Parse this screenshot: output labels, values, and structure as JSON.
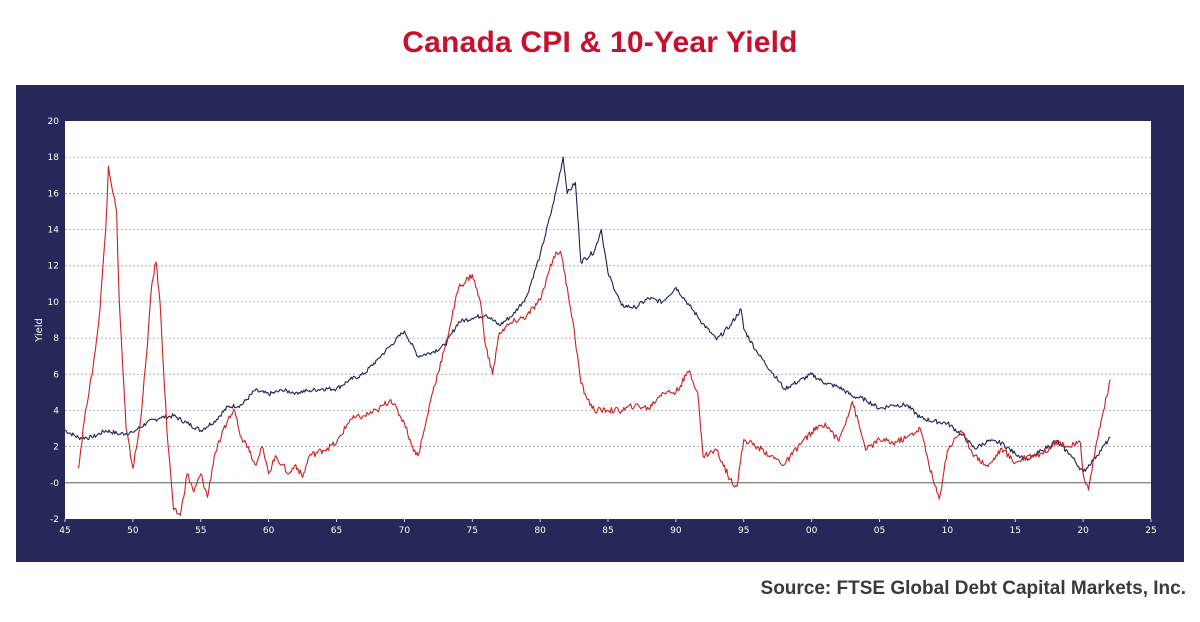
{
  "header": {
    "title": "Canada CPI & 10-Year Yield"
  },
  "footer": {
    "source": "Source: FTSE Global Debt Capital Markets, Inc."
  },
  "colors": {
    "background": "#252859",
    "plot_bg": "#ffffff",
    "cpi": "#cc1f1f",
    "yield": "#1e2258",
    "title": "#c8102e"
  },
  "chart_data": {
    "type": "line",
    "title": "Canada CPI & 10-Year Yield",
    "xlabel": "",
    "ylabel": "Yield",
    "xlim": [
      1945,
      2025
    ],
    "ylim": [
      -2,
      20
    ],
    "grid": true,
    "x_ticks": [
      "45",
      "50",
      "55",
      "60",
      "65",
      "70",
      "75",
      "80",
      "85",
      "90",
      "95",
      "00",
      "05",
      "10",
      "15",
      "20",
      "25"
    ],
    "y_ticks": [
      "-2",
      "-0",
      "2",
      "4",
      "6",
      "8",
      "10",
      "12",
      "14",
      "16",
      "18",
      "20"
    ],
    "series": [
      {
        "color": "#1e2258",
        "points": [
          [
            1945,
            2.9
          ],
          [
            1946,
            2.5
          ],
          [
            1947,
            2.5
          ],
          [
            1948,
            2.9
          ],
          [
            1949,
            2.7
          ],
          [
            1950,
            2.8
          ],
          [
            1951,
            3.3
          ],
          [
            1952,
            3.6
          ],
          [
            1953,
            3.7
          ],
          [
            1954,
            3.3
          ],
          [
            1955,
            2.9
          ],
          [
            1956,
            3.4
          ],
          [
            1957,
            4.2
          ],
          [
            1958,
            4.3
          ],
          [
            1959,
            5.1
          ],
          [
            1960,
            4.9
          ],
          [
            1961,
            5.1
          ],
          [
            1962,
            5.0
          ],
          [
            1963,
            5.1
          ],
          [
            1964,
            5.2
          ],
          [
            1965,
            5.2
          ],
          [
            1966,
            5.7
          ],
          [
            1967,
            6.0
          ],
          [
            1968,
            6.8
          ],
          [
            1969,
            7.6
          ],
          [
            1970,
            8.4
          ],
          [
            1971,
            7.0
          ],
          [
            1972,
            7.2
          ],
          [
            1973,
            7.6
          ],
          [
            1974,
            8.9
          ],
          [
            1975,
            9.1
          ],
          [
            1976,
            9.3
          ],
          [
            1977,
            8.7
          ],
          [
            1978,
            9.3
          ],
          [
            1979,
            10.3
          ],
          [
            1980,
            12.6
          ],
          [
            1981,
            15.5
          ],
          [
            1981.7,
            18.0
          ],
          [
            1982,
            16.0
          ],
          [
            1982.6,
            16.6
          ],
          [
            1983,
            12.2
          ],
          [
            1984,
            12.8
          ],
          [
            1984.5,
            14.0
          ],
          [
            1985,
            11.6
          ],
          [
            1986,
            9.8
          ],
          [
            1987,
            9.7
          ],
          [
            1988,
            10.2
          ],
          [
            1989,
            10.0
          ],
          [
            1990,
            10.8
          ],
          [
            1991,
            9.8
          ],
          [
            1992,
            8.8
          ],
          [
            1993,
            7.9
          ],
          [
            1994,
            8.7
          ],
          [
            1994.8,
            9.6
          ],
          [
            1995,
            8.5
          ],
          [
            1996,
            7.2
          ],
          [
            1997,
            6.2
          ],
          [
            1998,
            5.2
          ],
          [
            1999,
            5.6
          ],
          [
            2000,
            6.0
          ],
          [
            2001,
            5.5
          ],
          [
            2002,
            5.3
          ],
          [
            2003,
            4.8
          ],
          [
            2004,
            4.6
          ],
          [
            2005,
            4.1
          ],
          [
            2006,
            4.3
          ],
          [
            2007,
            4.3
          ],
          [
            2008,
            3.6
          ],
          [
            2009,
            3.4
          ],
          [
            2010,
            3.3
          ],
          [
            2011,
            2.7
          ],
          [
            2012,
            1.9
          ],
          [
            2013,
            2.3
          ],
          [
            2014,
            2.2
          ],
          [
            2015,
            1.6
          ],
          [
            2016,
            1.3
          ],
          [
            2017,
            1.8
          ],
          [
            2018,
            2.3
          ],
          [
            2019,
            1.6
          ],
          [
            2020,
            0.6
          ],
          [
            2021,
            1.5
          ],
          [
            2022,
            2.5
          ]
        ]
      },
      {
        "color": "#cc1f1f",
        "points": [
          [
            1946,
            0.8
          ],
          [
            1946.5,
            4.0
          ],
          [
            1947,
            6.0
          ],
          [
            1947.5,
            9.0
          ],
          [
            1948,
            14.0
          ],
          [
            1948.2,
            17.5
          ],
          [
            1948.8,
            15.0
          ],
          [
            1949,
            10.0
          ],
          [
            1949.5,
            3.0
          ],
          [
            1950,
            0.8
          ],
          [
            1950.5,
            3.0
          ],
          [
            1951,
            7.0
          ],
          [
            1951.4,
            11.0
          ],
          [
            1951.7,
            12.2
          ],
          [
            1952,
            10.0
          ],
          [
            1952.5,
            3.0
          ],
          [
            1953,
            -1.5
          ],
          [
            1953.5,
            -1.8
          ],
          [
            1954,
            0.5
          ],
          [
            1954.5,
            -0.5
          ],
          [
            1955,
            0.5
          ],
          [
            1955.5,
            -0.8
          ],
          [
            1956,
            1.5
          ],
          [
            1956.5,
            2.5
          ],
          [
            1957,
            3.5
          ],
          [
            1957.5,
            4.0
          ],
          [
            1958,
            2.5
          ],
          [
            1958.5,
            2.0
          ],
          [
            1959,
            1.0
          ],
          [
            1959.5,
            2.0
          ],
          [
            1960,
            0.5
          ],
          [
            1960.5,
            1.5
          ],
          [
            1961,
            1.0
          ],
          [
            1961.5,
            0.5
          ],
          [
            1962,
            1.0
          ],
          [
            1962.5,
            0.3
          ],
          [
            1963,
            1.5
          ],
          [
            1964,
            1.8
          ],
          [
            1965,
            2.2
          ],
          [
            1966,
            3.5
          ],
          [
            1967,
            3.7
          ],
          [
            1968,
            4.0
          ],
          [
            1969,
            4.6
          ],
          [
            1970,
            3.3
          ],
          [
            1970.6,
            2.0
          ],
          [
            1971,
            1.5
          ],
          [
            1971.5,
            3.0
          ],
          [
            1972,
            4.8
          ],
          [
            1973,
            7.5
          ],
          [
            1974,
            10.8
          ],
          [
            1975,
            11.5
          ],
          [
            1975.6,
            10.0
          ],
          [
            1976,
            7.5
          ],
          [
            1976.5,
            6.0
          ],
          [
            1977,
            8.3
          ],
          [
            1978,
            8.9
          ],
          [
            1979,
            9.2
          ],
          [
            1980,
            10.1
          ],
          [
            1980.7,
            11.8
          ],
          [
            1981,
            12.5
          ],
          [
            1981.5,
            12.8
          ],
          [
            1982,
            10.8
          ],
          [
            1982.5,
            8.5
          ],
          [
            1983,
            5.5
          ],
          [
            1983.5,
            4.6
          ],
          [
            1984,
            4.0
          ],
          [
            1985,
            4.0
          ],
          [
            1986,
            4.0
          ],
          [
            1987,
            4.3
          ],
          [
            1988,
            4.1
          ],
          [
            1989,
            5.0
          ],
          [
            1990,
            5.0
          ],
          [
            1991,
            6.2
          ],
          [
            1991.6,
            5.0
          ],
          [
            1992,
            1.5
          ],
          [
            1993,
            1.8
          ],
          [
            1994,
            0.2
          ],
          [
            1994.5,
            -0.2
          ],
          [
            1995,
            2.4
          ],
          [
            1996,
            2.0
          ],
          [
            1997,
            1.5
          ],
          [
            1998,
            1.0
          ],
          [
            1999,
            2.0
          ],
          [
            2000,
            2.8
          ],
          [
            2001,
            3.3
          ],
          [
            2002,
            2.3
          ],
          [
            2003,
            4.5
          ],
          [
            2004,
            1.8
          ],
          [
            2005,
            2.4
          ],
          [
            2006,
            2.2
          ],
          [
            2007,
            2.5
          ],
          [
            2008,
            3.0
          ],
          [
            2009,
            0.0
          ],
          [
            2009.4,
            -0.9
          ],
          [
            2010,
            1.8
          ],
          [
            2011,
            2.9
          ],
          [
            2012,
            1.5
          ],
          [
            2013,
            0.9
          ],
          [
            2014,
            1.9
          ],
          [
            2015,
            1.1
          ],
          [
            2016,
            1.5
          ],
          [
            2017,
            1.6
          ],
          [
            2018,
            2.3
          ],
          [
            2019,
            2.0
          ],
          [
            2019.8,
            2.2
          ],
          [
            2020,
            0.5
          ],
          [
            2020.4,
            -0.4
          ],
          [
            2021,
            2.3
          ],
          [
            2021.5,
            4.0
          ],
          [
            2022,
            5.7
          ]
        ]
      }
    ]
  }
}
